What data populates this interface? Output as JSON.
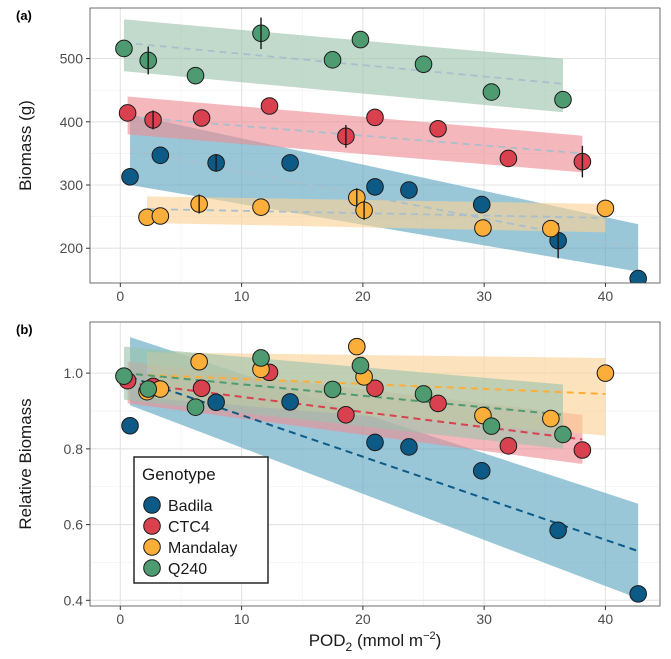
{
  "colors": {
    "Badila": "#0e5a86",
    "CTC4": "#d9414f",
    "Mandalay": "#fbae3a",
    "Q240": "#4e9b72"
  },
  "band_colors": {
    "Badila": "#5aa5c0",
    "CTC4": "#ee8c93",
    "Mandalay": "#fbd294",
    "Q240": "#9bc4ad"
  },
  "x_axis": {
    "label_main": "POD",
    "label_sub": "2",
    "label_unit": " (mmol m",
    "label_sup": "−2",
    "label_close": ")",
    "ticks": [
      0,
      10,
      20,
      30,
      40
    ],
    "tick_labels": [
      "0",
      "10",
      "20",
      "30",
      "40"
    ],
    "xlim": [
      -2.5,
      44.5
    ]
  },
  "legend": {
    "title": "Genotype",
    "entries": [
      "Badila",
      "CTC4",
      "Mandalay",
      "Q240"
    ]
  },
  "chart_data": [
    {
      "panel": "(a)",
      "type": "scatter",
      "ylabel": "Biomass (g)",
      "ylim": [
        145,
        580
      ],
      "yticks": [
        200,
        300,
        400,
        500
      ],
      "ytick_labels": [
        "200",
        "300",
        "400",
        "500"
      ],
      "grid": true,
      "series": [
        {
          "name": "Badila",
          "points": [
            [
              0.8,
              313,
              0
            ],
            [
              3.3,
              347,
              0
            ],
            [
              7.9,
              335,
              14
            ],
            [
              14,
              335,
              0
            ],
            [
              21,
              297,
              0
            ],
            [
              23.8,
              292,
              0
            ],
            [
              29.8,
              269,
              0
            ],
            [
              36.1,
              212,
              28
            ],
            [
              42.7,
              152,
              0
            ]
          ],
          "fit": {
            "x": [
              0.8,
              42.7
            ],
            "y": [
              355,
              200
            ]
          },
          "band": {
            "x": [
              0.8,
              42.7
            ],
            "lo": [
              300,
              163
            ],
            "hi": [
              412,
              238
            ]
          }
        },
        {
          "name": "CTC4",
          "points": [
            [
              0.6,
              414,
              0
            ],
            [
              2.7,
              403,
              15
            ],
            [
              6.7,
              406,
              0
            ],
            [
              12.3,
              425,
              0
            ],
            [
              18.6,
              377,
              18
            ],
            [
              21,
              407,
              0
            ],
            [
              26.2,
              389,
              0
            ],
            [
              32,
              342,
              0
            ],
            [
              38.1,
              337,
              25
            ]
          ],
          "fit": {
            "x": [
              0.6,
              38.1
            ],
            "y": [
              408,
              350
            ]
          },
          "band": {
            "x": [
              0.6,
              38.1
            ],
            "lo": [
              380,
              320
            ],
            "hi": [
              440,
              378
            ]
          }
        },
        {
          "name": "Mandalay",
          "points": [
            [
              2.2,
              249,
              0
            ],
            [
              3.3,
              251,
              0
            ],
            [
              6.5,
              270,
              15
            ],
            [
              11.6,
              265,
              0
            ],
            [
              19.5,
              280,
              15
            ],
            [
              20.1,
              260,
              15
            ],
            [
              29.9,
              232,
              0
            ],
            [
              35.5,
              231,
              0
            ],
            [
              40,
              263,
              0
            ]
          ],
          "fit": {
            "x": [
              2.2,
              40
            ],
            "y": [
              262,
              248
            ]
          },
          "band": {
            "x": [
              2.2,
              40
            ],
            "lo": [
              240,
              225
            ],
            "hi": [
              282,
              270
            ]
          }
        },
        {
          "name": "Q240",
          "points": [
            [
              0.3,
              516,
              0
            ],
            [
              2.3,
              497,
              22
            ],
            [
              6.2,
              473,
              0
            ],
            [
              11.6,
              540,
              25
            ],
            [
              17.5,
              498,
              0
            ],
            [
              19.8,
              530,
              0
            ],
            [
              25,
              491,
              0
            ],
            [
              30.6,
              447,
              0
            ],
            [
              36.5,
              435,
              0
            ]
          ],
          "fit": {
            "x": [
              0.3,
              36.5
            ],
            "y": [
              525,
              460
            ]
          },
          "band": {
            "x": [
              0.3,
              36.5
            ],
            "lo": [
              480,
              415
            ],
            "hi": [
              562,
              500
            ]
          }
        }
      ]
    },
    {
      "panel": "(b)",
      "type": "scatter",
      "ylabel": "Relative Biomass",
      "ylim": [
        0.385,
        1.135
      ],
      "yticks": [
        0.4,
        0.6,
        0.8,
        1.0
      ],
      "ytick_labels": [
        "0.4",
        "0.6",
        "0.8",
        "1.0"
      ],
      "grid": true,
      "legend_position": "bottom-left",
      "series": [
        {
          "name": "Badila",
          "points": [
            [
              0.8,
              0.861
            ],
            [
              7.9,
              0.923
            ],
            [
              14,
              0.924
            ],
            [
              21,
              0.817
            ],
            [
              23.8,
              0.805
            ],
            [
              29.8,
              0.742
            ],
            [
              36.1,
              0.585
            ],
            [
              42.7,
              0.417
            ]
          ],
          "fit": {
            "x": [
              0.8,
              42.7
            ],
            "y": [
              0.99,
              0.53
            ]
          },
          "band": {
            "x": [
              0.8,
              42.7
            ],
            "lo": [
              0.915,
              0.405
            ],
            "hi": [
              1.095,
              0.655
            ]
          }
        },
        {
          "name": "CTC4",
          "points": [
            [
              0.6,
              0.98
            ],
            [
              2.7,
              0.965
            ],
            [
              6.7,
              0.96
            ],
            [
              12.3,
              1.002
            ],
            [
              18.6,
              0.89
            ],
            [
              21,
              0.96
            ],
            [
              26.2,
              0.92
            ],
            [
              32,
              0.808
            ],
            [
              38.1,
              0.797
            ]
          ],
          "fit": {
            "x": [
              0.6,
              38.1
            ],
            "y": [
              0.975,
              0.825
            ]
          },
          "band": {
            "x": [
              0.6,
              38.1
            ],
            "lo": [
              0.92,
              0.76
            ],
            "hi": [
              1.03,
              0.89
            ]
          }
        },
        {
          "name": "Mandalay",
          "points": [
            [
              2.2,
              0.951
            ],
            [
              3.3,
              0.958
            ],
            [
              6.5,
              1.03
            ],
            [
              11.6,
              1.01
            ],
            [
              19.5,
              1.07
            ],
            [
              20.1,
              0.99
            ],
            [
              29.9,
              0.888
            ],
            [
              35.5,
              0.88
            ],
            [
              40,
              1.0
            ]
          ],
          "fit": {
            "x": [
              2.2,
              40
            ],
            "y": [
              0.995,
              0.945
            ]
          },
          "band": {
            "x": [
              2.2,
              40
            ],
            "lo": [
              0.935,
              0.835
            ],
            "hi": [
              1.055,
              1.04
            ]
          }
        },
        {
          "name": "Q240",
          "points": [
            [
              0.3,
              0.992
            ],
            [
              2.3,
              0.958
            ],
            [
              6.2,
              0.91
            ],
            [
              11.6,
              1.04
            ],
            [
              17.5,
              0.957
            ],
            [
              19.8,
              1.02
            ],
            [
              25,
              0.945
            ],
            [
              30.6,
              0.86
            ],
            [
              36.5,
              0.838
            ]
          ],
          "fit": {
            "x": [
              0.3,
              36.5
            ],
            "y": [
              1.0,
              0.89
            ]
          },
          "band": {
            "x": [
              0.3,
              36.5
            ],
            "lo": [
              0.93,
              0.8
            ],
            "hi": [
              1.07,
              0.97
            ]
          }
        }
      ]
    }
  ]
}
